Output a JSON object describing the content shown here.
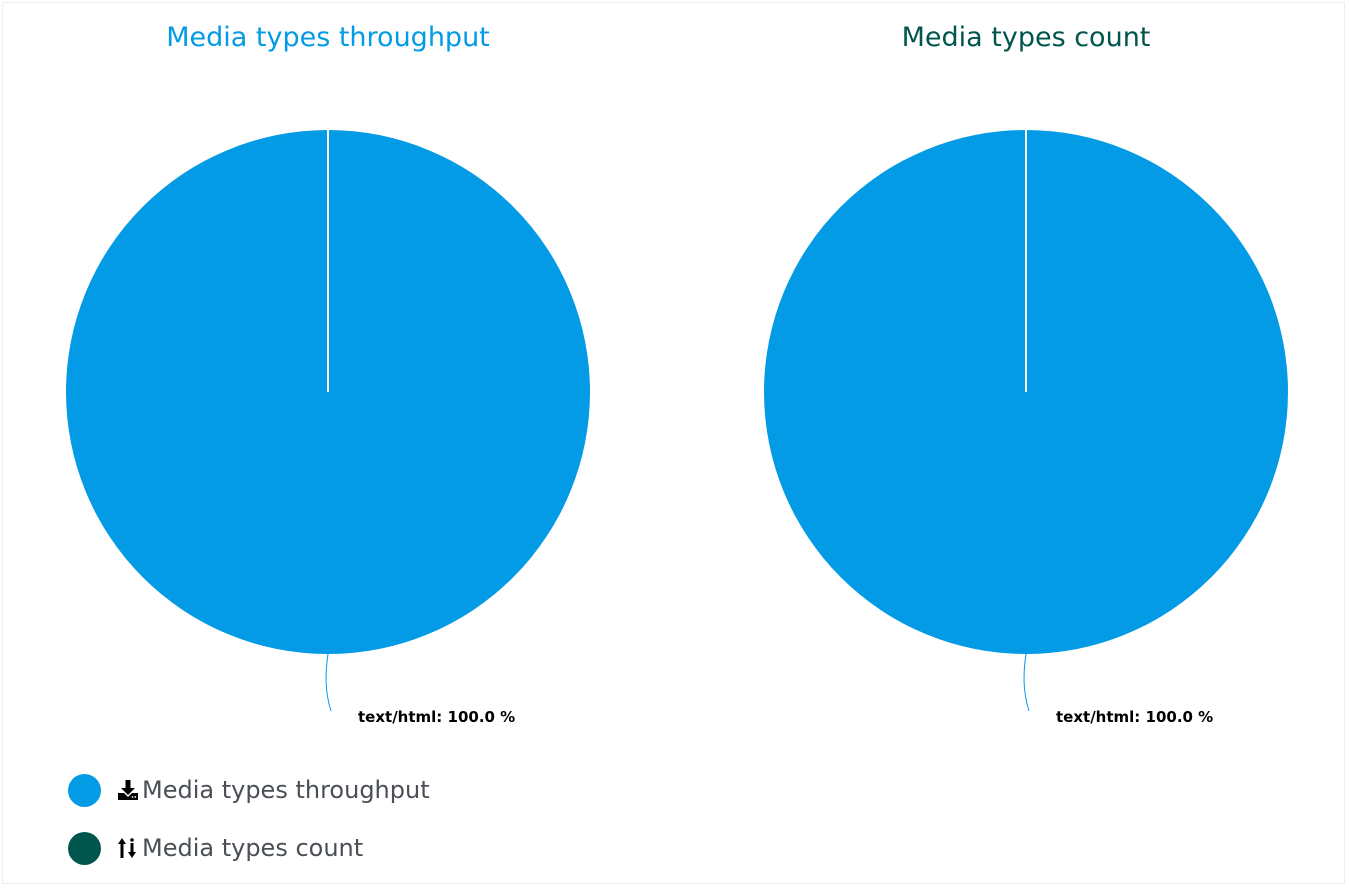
{
  "colors": {
    "throughput": "#039BE5",
    "count": "#00564D",
    "slice": "#039BE5"
  },
  "chart_data": [
    {
      "type": "pie",
      "title": "Media types throughput",
      "title_color": "#039BE5",
      "slices": [
        {
          "label": "text/html",
          "value": 100.0,
          "display": "text/html: 100.0 %"
        }
      ]
    },
    {
      "type": "pie",
      "title": "Media types count",
      "title_color": "#00564D",
      "slices": [
        {
          "label": "text/html",
          "value": 100.0,
          "display": "text/html: 100.0 %"
        }
      ]
    }
  ],
  "legend": {
    "items": [
      {
        "label": "Media types throughput",
        "color": "#039BE5",
        "icon": "download-icon"
      },
      {
        "label": "Media types count",
        "color": "#00564D",
        "icon": "sort-arrows-icon"
      }
    ]
  }
}
